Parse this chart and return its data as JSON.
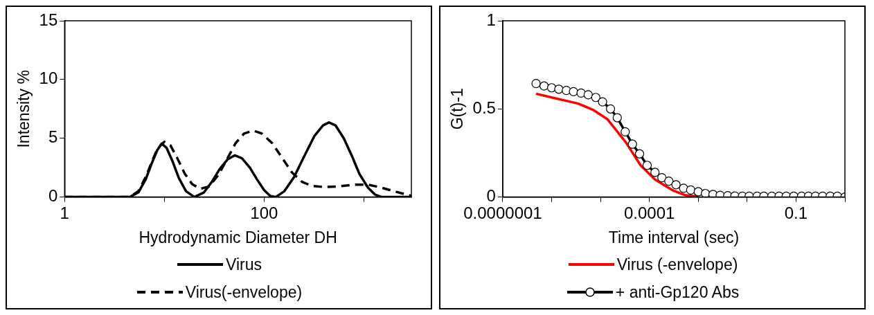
{
  "chart_data": [
    {
      "type": "line",
      "xlabel": "Hydrodynamic Diameter DH",
      "ylabel": "Intensity %",
      "log": "x",
      "xlim": [
        1,
        3000
      ],
      "xticks": [
        1,
        {
          "value": 10,
          "label": null
        },
        100,
        {
          "value": 1000,
          "label": null
        }
      ],
      "ylim": [
        0,
        15
      ],
      "yticks": [
        0,
        5,
        10,
        15
      ],
      "grid": false,
      "legend": "bottom",
      "marker": "none",
      "series": [
        {
          "name": "Virus",
          "color": "#000000",
          "line_style": "solid",
          "x": [
            1,
            4.5,
            5.5,
            6.5,
            7.5,
            8.5,
            9.4,
            10.5,
            12,
            14,
            16.5,
            20,
            25,
            30,
            36,
            43,
            51,
            60,
            72,
            85,
            100,
            115,
            131,
            160,
            200,
            250,
            320,
            390,
            448,
            520,
            630,
            760,
            900,
            1100,
            1300,
            1500,
            3000
          ],
          "values": [
            0,
            0,
            0.4,
            1.5,
            2.9,
            4.0,
            4.55,
            4.2,
            3.1,
            1.6,
            0.5,
            0,
            0.4,
            1.3,
            2.4,
            3.2,
            3.55,
            3.3,
            2.5,
            1.5,
            0.6,
            0.1,
            0,
            0.5,
            1.7,
            3.4,
            5.2,
            6.1,
            6.35,
            6.1,
            5.0,
            3.5,
            2.0,
            0.8,
            0.2,
            0,
            0
          ]
        },
        {
          "name": "Virus(-envelope)",
          "color": "#000000",
          "line_style": "dashed",
          "x": [
            1,
            4.5,
            5.5,
            6.5,
            7.5,
            8.5,
            10,
            11.5,
            13.5,
            16,
            19,
            23,
            28,
            35,
            43,
            52,
            63,
            78,
            95,
            120,
            150,
            190,
            240,
            300,
            400,
            550,
            800,
            1100,
            1500,
            2000,
            3000
          ],
          "values": [
            0,
            0,
            0.5,
            1.7,
            3.0,
            4.1,
            4.7,
            4.4,
            3.3,
            2.0,
            1.1,
            0.7,
            0.9,
            1.9,
            3.3,
            4.6,
            5.4,
            5.65,
            5.4,
            4.6,
            3.4,
            2.1,
            1.3,
            0.95,
            0.85,
            0.9,
            1.05,
            1.05,
            0.8,
            0.5,
            0.1
          ]
        }
      ]
    },
    {
      "type": "line",
      "xlabel": "Time interval (sec)",
      "ylabel": "G(t)-1",
      "log": "x",
      "xlim": [
        1e-07,
        1
      ],
      "xticks": [
        {
          "value": 1e-07,
          "label": "0.0000001"
        },
        {
          "value": 1e-06,
          "label": null
        },
        {
          "value": 1e-05,
          "label": null
        },
        {
          "value": 0.0001,
          "label": "0.0001"
        },
        {
          "value": 0.001,
          "label": null
        },
        {
          "value": 0.01,
          "label": null
        },
        0.1,
        {
          "value": 1,
          "label": null
        }
      ],
      "ylim": [
        0,
        1
      ],
      "yticks": [
        0,
        0.5,
        1
      ],
      "grid": false,
      "legend": "bottom",
      "series": [
        {
          "name": "Virus (-envelope)",
          "color": "#ff0000",
          "marker": "none",
          "line_style": "solid",
          "x": [
            4.8e-07,
            1e-06,
            3.5e-06,
            7e-06,
            1.4e-05,
            3.3e-05,
            6.6e-05,
            0.00013,
            0.00031,
            0.00055,
            0.001
          ],
          "values": [
            0.586,
            0.565,
            0.53,
            0.495,
            0.44,
            0.31,
            0.18,
            0.1,
            0.036,
            0.01,
            0.003
          ]
        },
        {
          "name": "+ anti-Gp120 Abs",
          "color": "#000000",
          "marker": "circle",
          "line_style": "solid",
          "x": [
            4.8e-07,
            7e-07,
            1e-06,
            1.4e-06,
            2e-06,
            2.8e-06,
            4e-06,
            5.6e-06,
            8e-06,
            1.1e-05,
            1.6e-05,
            2.2e-05,
            3.2e-05,
            4.5e-05,
            6.3e-05,
            9e-05,
            0.00013,
            0.00018,
            0.00025,
            0.00035,
            0.0005,
            0.0007,
            0.001,
            0.0014,
            0.002,
            0.0028,
            0.004,
            0.0056,
            0.008,
            0.011,
            0.016,
            0.022,
            0.032,
            0.045,
            0.063,
            0.09,
            0.13,
            0.18,
            0.25,
            0.35,
            0.5,
            0.7,
            1
          ],
          "values": [
            0.644,
            0.63,
            0.62,
            0.612,
            0.605,
            0.598,
            0.59,
            0.58,
            0.565,
            0.54,
            0.5,
            0.45,
            0.37,
            0.3,
            0.245,
            0.18,
            0.14,
            0.11,
            0.09,
            0.07,
            0.05,
            0.04,
            0.03,
            0.02,
            0.015,
            0.01,
            0.008,
            0.006,
            0.005,
            0.005,
            0.005,
            0.005,
            0.005,
            0.005,
            0.005,
            0.005,
            0.005,
            0.005,
            0.005,
            0.005,
            0.005,
            0.005,
            0
          ]
        }
      ]
    }
  ]
}
